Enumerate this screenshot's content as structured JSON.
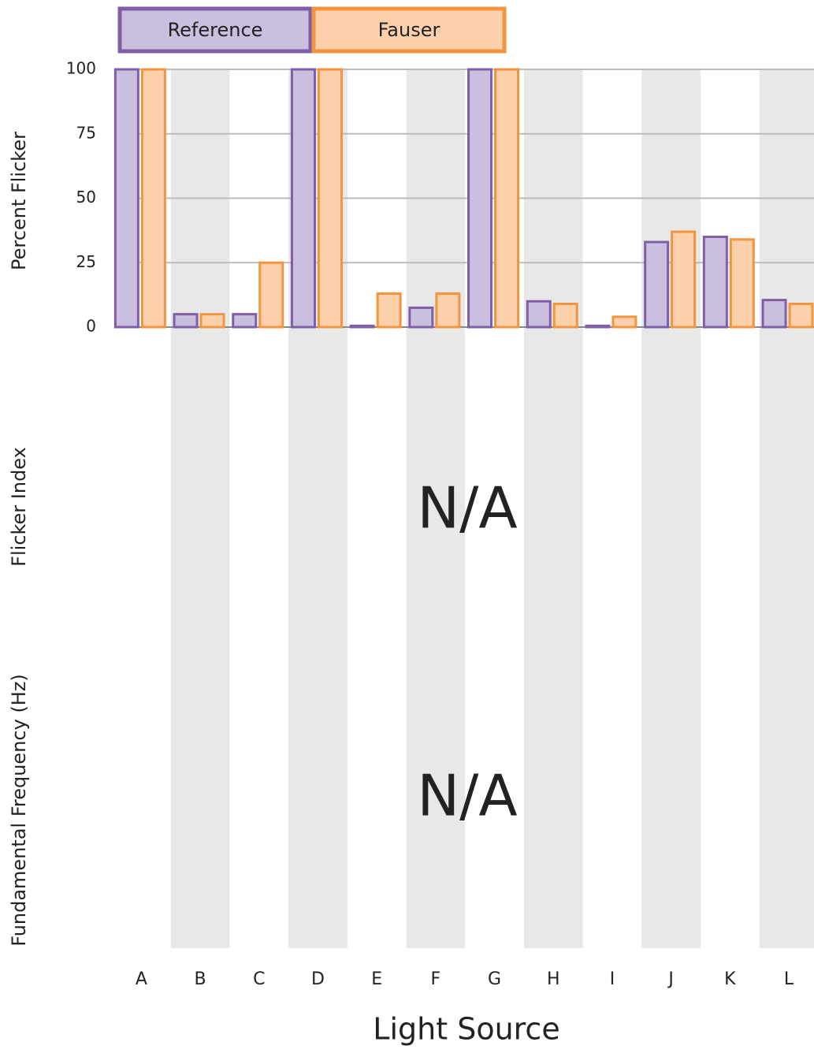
{
  "chart_data": {
    "type": "bar",
    "categories": [
      "A",
      "B",
      "C",
      "D",
      "E",
      "F",
      "G",
      "H",
      "I",
      "J",
      "K",
      "L"
    ],
    "series": [
      {
        "name": "Reference",
        "color": "#cbbfdf",
        "edge": "#7f5fa5",
        "values": [
          100,
          5,
          5,
          100,
          0.5,
          7.5,
          100,
          10,
          0.5,
          33,
          35,
          10.5
        ]
      },
      {
        "name": "Fauser",
        "color": "#fcd0aa",
        "edge": "#f39440",
        "values": [
          100,
          5,
          25,
          100,
          13,
          13,
          100,
          9,
          4,
          37,
          34,
          9
        ]
      }
    ],
    "ylim": [
      0,
      100
    ],
    "yticks": [
      0,
      25,
      50,
      75,
      100
    ],
    "grid": true,
    "ylabel": "Percent Flicker",
    "xlabel": "Light Source",
    "panels": [
      {
        "ylabel": "Flicker Index",
        "text": "N/A"
      },
      {
        "ylabel": "Fundamental Frequency (Hz)",
        "text": "N/A"
      }
    ]
  }
}
